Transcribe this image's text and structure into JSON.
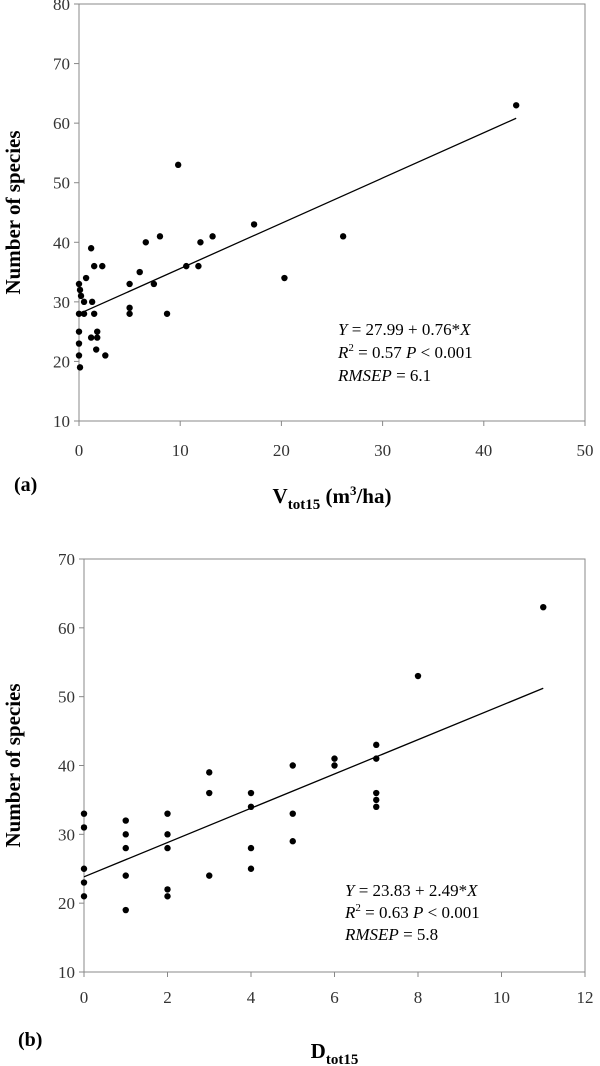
{
  "chart_data": [
    {
      "type": "scatter",
      "panel_label": "(a)",
      "xlabel_main": "V",
      "xlabel_sub": "tot15",
      "xlabel_unit_pre": "(m",
      "xlabel_unit_sup": "3",
      "xlabel_unit_post": "/ha)",
      "ylabel": "Number of species",
      "xlim": [
        0,
        50
      ],
      "ylim": [
        10,
        80
      ],
      "xticks": [
        0,
        10,
        20,
        30,
        40,
        50
      ],
      "yticks": [
        10,
        20,
        30,
        40,
        50,
        60,
        70,
        80
      ],
      "grid": false,
      "points": [
        [
          0.0,
          33
        ],
        [
          0.1,
          32
        ],
        [
          0.2,
          31
        ],
        [
          0.0,
          28
        ],
        [
          0.0,
          25
        ],
        [
          0.0,
          23
        ],
        [
          0.0,
          21
        ],
        [
          0.1,
          19
        ],
        [
          0.5,
          30
        ],
        [
          0.7,
          34
        ],
        [
          0.5,
          28
        ],
        [
          1.2,
          39
        ],
        [
          1.5,
          36
        ],
        [
          1.3,
          30
        ],
        [
          1.5,
          28
        ],
        [
          1.2,
          24
        ],
        [
          1.8,
          25
        ],
        [
          1.8,
          24
        ],
        [
          1.7,
          22
        ],
        [
          2.3,
          36
        ],
        [
          2.6,
          21
        ],
        [
          5.0,
          33
        ],
        [
          5.0,
          29
        ],
        [
          5.0,
          28
        ],
        [
          6.0,
          35
        ],
        [
          6.6,
          40
        ],
        [
          7.4,
          33
        ],
        [
          8.0,
          41
        ],
        [
          8.7,
          28
        ],
        [
          9.8,
          53
        ],
        [
          10.6,
          36
        ],
        [
          11.8,
          36
        ],
        [
          12.0,
          40
        ],
        [
          13.2,
          41
        ],
        [
          17.3,
          43
        ],
        [
          20.3,
          34
        ],
        [
          26.1,
          41
        ],
        [
          43.2,
          63
        ]
      ],
      "fit": {
        "intercept": 27.99,
        "slope": 0.76,
        "x_range": [
          0,
          43.2
        ]
      },
      "annotation": {
        "eq_y": "Y",
        "eq_rest": " = 27.99 + 0.76*",
        "eq_x": "X",
        "r2_r": "R",
        "r2_sup": "2",
        "r2_val": " = 0.57  ",
        "p_p": "P",
        "p_val": " < 0.001",
        "rmsep_label": "RMSEP",
        "rmsep_val": " = 6.1"
      }
    },
    {
      "type": "scatter",
      "panel_label": "(b)",
      "xlabel_main": "D",
      "xlabel_sub": "tot15",
      "ylabel": "Number of species",
      "xlim": [
        0,
        12
      ],
      "ylim": [
        10,
        70
      ],
      "xticks": [
        0,
        2,
        4,
        6,
        8,
        10,
        12
      ],
      "yticks": [
        10,
        20,
        30,
        40,
        50,
        60,
        70
      ],
      "grid": false,
      "points": [
        [
          0,
          33
        ],
        [
          0,
          31
        ],
        [
          0,
          25
        ],
        [
          0,
          23
        ],
        [
          0,
          21
        ],
        [
          1,
          32
        ],
        [
          1,
          30
        ],
        [
          1,
          28
        ],
        [
          1,
          24
        ],
        [
          1,
          19
        ],
        [
          2,
          33
        ],
        [
          2,
          30
        ],
        [
          2,
          28
        ],
        [
          2,
          22
        ],
        [
          2,
          21
        ],
        [
          3,
          39
        ],
        [
          3,
          36
        ],
        [
          3,
          24
        ],
        [
          4,
          36
        ],
        [
          4,
          34
        ],
        [
          4,
          28
        ],
        [
          4,
          25
        ],
        [
          5,
          40
        ],
        [
          5,
          33
        ],
        [
          5,
          29
        ],
        [
          6,
          41
        ],
        [
          6,
          40
        ],
        [
          7,
          43
        ],
        [
          7,
          41
        ],
        [
          7,
          36
        ],
        [
          7,
          35
        ],
        [
          7,
          34
        ],
        [
          8,
          53
        ],
        [
          11,
          63
        ]
      ],
      "fit": {
        "intercept": 23.83,
        "slope": 2.49,
        "x_range": [
          0,
          11
        ]
      },
      "annotation": {
        "eq_y": "Y",
        "eq_rest": " = 23.83 + 2.49*",
        "eq_x": "X",
        "r2_r": "R",
        "r2_sup": "2",
        "r2_val": " = 0.63  ",
        "p_p": "P",
        "p_val": " < 0.001",
        "rmsep_label": "RMSEP",
        "rmsep_val": " = 5.8"
      }
    }
  ]
}
